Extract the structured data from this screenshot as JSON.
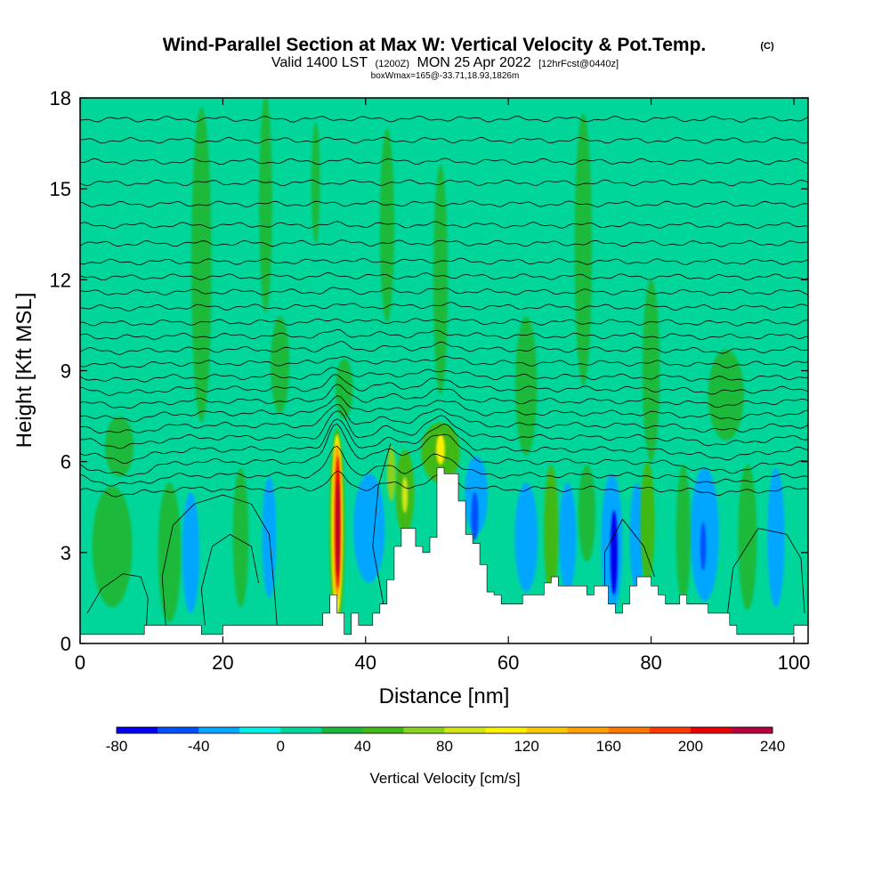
{
  "header": {
    "title": "Wind-Parallel Section at Max W: Vertical Velocity & Pot.Temp.",
    "copyright": "(C)",
    "valid_prefix": "Valid 1400 LST",
    "valid_utc": "(1200Z)",
    "valid_date": "MON 25 Apr 2022",
    "forecast": "[12hrFcst@0440z]",
    "box_line": "boxWmax=165@-33.71,18.93,1826m"
  },
  "chart_data": {
    "type": "heatmap",
    "title": "Wind-Parallel Section at Max W: Vertical Velocity & Pot.Temp.",
    "xlabel": "Distance [nm]",
    "ylabel": "Height [Kft MSL]",
    "xlim": [
      0,
      102
    ],
    "ylim": [
      0,
      18
    ],
    "x_ticks": [
      0,
      20,
      40,
      60,
      80,
      100
    ],
    "y_ticks": [
      0,
      3,
      6,
      9,
      12,
      15,
      18
    ],
    "grid": false,
    "background_w_cms": 10,
    "colorbar": {
      "title": "Vertical Velocity [cm/s]",
      "bounds": [
        -80,
        -60,
        -40,
        -20,
        0,
        20,
        40,
        60,
        80,
        100,
        120,
        140,
        160,
        180,
        200,
        220,
        240
      ],
      "tick_labels": [
        "-80",
        "-40",
        "0",
        "40",
        "80",
        "120",
        "160",
        "200",
        "240"
      ],
      "colors": [
        "#0000ee",
        "#0050ff",
        "#00a6ff",
        "#00f0e6",
        "#00d69a",
        "#1bb93a",
        "#40b919",
        "#8ad21e",
        "#d2e617",
        "#fff000",
        "#ffc800",
        "#ffa000",
        "#ff7800",
        "#ff3c00",
        "#e60000",
        "#b4003c"
      ]
    },
    "terrain": [
      [
        0,
        0.3
      ],
      [
        9,
        0.3
      ],
      [
        9,
        0.6
      ],
      [
        17,
        0.6
      ],
      [
        17,
        0.3
      ],
      [
        20,
        0.3
      ],
      [
        20,
        0.6
      ],
      [
        34,
        0.6
      ],
      [
        34,
        1
      ],
      [
        35,
        1
      ],
      [
        35,
        1.6
      ],
      [
        36,
        1.6
      ],
      [
        36,
        1
      ],
      [
        37,
        1
      ],
      [
        37,
        0.3
      ],
      [
        38,
        0.3
      ],
      [
        38,
        1
      ],
      [
        39,
        1
      ],
      [
        39,
        0.6
      ],
      [
        41,
        0.6
      ],
      [
        41,
        1
      ],
      [
        42,
        1
      ],
      [
        42,
        1.3
      ],
      [
        43,
        1.3
      ],
      [
        43,
        2.1
      ],
      [
        44,
        2.1
      ],
      [
        44,
        3.2
      ],
      [
        45,
        3.2
      ],
      [
        45,
        3.8
      ],
      [
        47,
        3.8
      ],
      [
        47,
        3.2
      ],
      [
        48,
        3.2
      ],
      [
        48,
        3
      ],
      [
        49,
        3
      ],
      [
        49,
        3.5
      ],
      [
        50,
        3.5
      ],
      [
        50,
        5.8
      ],
      [
        51,
        5.8
      ],
      [
        51,
        5.6
      ],
      [
        53,
        5.6
      ],
      [
        53,
        4.7
      ],
      [
        54,
        4.7
      ],
      [
        54,
        3.6
      ],
      [
        55,
        3.6
      ],
      [
        55,
        3.3
      ],
      [
        56,
        3.3
      ],
      [
        56,
        2.6
      ],
      [
        57,
        2.6
      ],
      [
        57,
        1.7
      ],
      [
        58,
        1.7
      ],
      [
        58,
        1.6
      ],
      [
        59,
        1.6
      ],
      [
        59,
        1.3
      ],
      [
        60,
        1.3
      ],
      [
        60,
        1.3
      ],
      [
        62,
        1.3
      ],
      [
        62,
        1.6
      ],
      [
        64,
        1.6
      ],
      [
        64,
        1.6
      ],
      [
        65,
        1.6
      ],
      [
        65,
        2
      ],
      [
        66,
        2
      ],
      [
        66,
        2.2
      ],
      [
        67,
        2.2
      ],
      [
        67,
        1.9
      ],
      [
        71,
        1.9
      ],
      [
        71,
        1.6
      ],
      [
        72,
        1.6
      ],
      [
        72,
        1.9
      ],
      [
        74,
        1.9
      ],
      [
        74,
        1.3
      ],
      [
        75,
        1.3
      ],
      [
        75,
        1
      ],
      [
        76,
        1
      ],
      [
        76,
        1.3
      ],
      [
        77,
        1.3
      ],
      [
        77,
        1.9
      ],
      [
        78,
        1.9
      ],
      [
        78,
        2.2
      ],
      [
        80,
        2.2
      ],
      [
        80,
        1.9
      ],
      [
        81,
        1.9
      ],
      [
        81,
        1.6
      ],
      [
        82,
        1.6
      ],
      [
        82,
        1.3
      ],
      [
        84,
        1.3
      ],
      [
        84,
        1.6
      ],
      [
        85,
        1.6
      ],
      [
        85,
        1.3
      ],
      [
        88,
        1.3
      ],
      [
        88,
        1
      ],
      [
        91,
        1
      ],
      [
        91,
        0.6
      ],
      [
        92,
        0.6
      ],
      [
        92,
        0.3
      ],
      [
        100,
        0.3
      ],
      [
        100,
        0.6
      ],
      [
        102,
        0.6
      ]
    ],
    "w_features": [
      {
        "x": 36,
        "y": 3.8,
        "rx": 1.1,
        "ry": 3.3,
        "w": 40
      },
      {
        "x": 36,
        "y": 3.9,
        "rx": 0.8,
        "ry": 3.0,
        "w": 100
      },
      {
        "x": 36,
        "y": 4.0,
        "rx": 0.55,
        "ry": 2.6,
        "w": 150
      },
      {
        "x": 36.1,
        "y": 4.0,
        "rx": 0.35,
        "ry": 2.2,
        "w": 210
      },
      {
        "x": 36.1,
        "y": 3.8,
        "rx": 0.22,
        "ry": 1.6,
        "w": 240
      },
      {
        "x": 50.5,
        "y": 6.3,
        "rx": 2.7,
        "ry": 1.0,
        "w": 40
      },
      {
        "x": 50.5,
        "y": 6.4,
        "rx": 0.6,
        "ry": 0.5,
        "w": 100
      },
      {
        "x": 45.5,
        "y": 5,
        "rx": 1.3,
        "ry": 1.4,
        "w": 40
      },
      {
        "x": 45.5,
        "y": 4.9,
        "rx": 0.4,
        "ry": 0.6,
        "w": 80
      },
      {
        "x": 40.5,
        "y": 3.8,
        "rx": 2.2,
        "ry": 1.8,
        "w": -30
      },
      {
        "x": 40.5,
        "y": 3.7,
        "rx": 1.2,
        "ry": 1.1,
        "w": -40
      },
      {
        "x": 55.5,
        "y": 4.9,
        "rx": 1.6,
        "ry": 1.3,
        "w": -30
      },
      {
        "x": 55.3,
        "y": 4.2,
        "rx": 0.5,
        "ry": 0.8,
        "w": -60
      },
      {
        "x": 74.5,
        "y": 3.3,
        "rx": 1.5,
        "ry": 2.3,
        "w": -40
      },
      {
        "x": 74.8,
        "y": 3.0,
        "rx": 0.5,
        "ry": 1.4,
        "w": -80
      },
      {
        "x": 15.5,
        "y": 3,
        "rx": 1.2,
        "ry": 2.0,
        "w": -40
      },
      {
        "x": 87.5,
        "y": 3.6,
        "rx": 2.0,
        "ry": 2.2,
        "w": -30
      },
      {
        "x": 87.3,
        "y": 3.2,
        "rx": 0.4,
        "ry": 0.8,
        "w": -60
      },
      {
        "x": 97.5,
        "y": 3.5,
        "rx": 1.2,
        "ry": 2.3,
        "w": -30
      },
      {
        "x": 62.5,
        "y": 3.5,
        "rx": 1.6,
        "ry": 1.8,
        "w": -30
      },
      {
        "x": 68.3,
        "y": 3.5,
        "rx": 1.2,
        "ry": 1.8,
        "w": -30
      },
      {
        "x": 26.5,
        "y": 3.5,
        "rx": 1.0,
        "ry": 2.0,
        "w": -30
      },
      {
        "x": 78,
        "y": 3.5,
        "rx": 1.0,
        "ry": 1.8,
        "w": -30
      },
      {
        "x": 22.5,
        "y": 3.5,
        "rx": 1.1,
        "ry": 2.3,
        "w": 30
      },
      {
        "x": 66,
        "y": 3.7,
        "rx": 1.0,
        "ry": 2.2,
        "w": 40
      },
      {
        "x": 79.5,
        "y": 4.0,
        "rx": 1.0,
        "ry": 2.0,
        "w": 40
      },
      {
        "x": 71,
        "y": 4.3,
        "rx": 1.2,
        "ry": 1.6,
        "w": 30
      },
      {
        "x": 84.5,
        "y": 3.6,
        "rx": 1.0,
        "ry": 2.3,
        "w": 30
      },
      {
        "x": 93.5,
        "y": 3.5,
        "rx": 1.3,
        "ry": 2.4,
        "w": 30
      },
      {
        "x": 12.5,
        "y": 3.0,
        "rx": 1.6,
        "ry": 2.3,
        "w": 30
      },
      {
        "x": 4.5,
        "y": 3.2,
        "rx": 2.8,
        "ry": 2.0,
        "w": 30
      },
      {
        "x": 43.6,
        "y": 5.6,
        "rx": 0.6,
        "ry": 0.9,
        "w": 60
      },
      {
        "x": 17,
        "y": 12.5,
        "rx": 1.4,
        "ry": 5.2,
        "w": 30
      },
      {
        "x": 26,
        "y": 14.5,
        "rx": 0.9,
        "ry": 3.6,
        "w": 30
      },
      {
        "x": 43,
        "y": 13.8,
        "rx": 1.0,
        "ry": 3.2,
        "w": 30
      },
      {
        "x": 50.5,
        "y": 12,
        "rx": 1.0,
        "ry": 3.8,
        "w": 30
      },
      {
        "x": 70.5,
        "y": 13,
        "rx": 1.2,
        "ry": 4.5,
        "w": 30
      },
      {
        "x": 80,
        "y": 9,
        "rx": 1.2,
        "ry": 3.0,
        "w": 30
      },
      {
        "x": 90.5,
        "y": 8.2,
        "rx": 2.5,
        "ry": 1.5,
        "w": 30
      },
      {
        "x": 62.5,
        "y": 8.5,
        "rx": 1.5,
        "ry": 2.3,
        "w": 30
      },
      {
        "x": 33,
        "y": 15.2,
        "rx": 0.6,
        "ry": 2.0,
        "w": 30
      },
      {
        "x": 5.5,
        "y": 6.5,
        "rx": 2.0,
        "ry": 1.0,
        "w": 30
      },
      {
        "x": 28,
        "y": 9.2,
        "rx": 1.3,
        "ry": 1.6,
        "w": 30
      },
      {
        "x": 37,
        "y": 8.4,
        "rx": 1.2,
        "ry": 1.0,
        "w": 30
      }
    ],
    "theta_levels": [
      {
        "y0": 5.1,
        "amp": 0.5
      },
      {
        "y0": 5.55,
        "amp": 0.9
      },
      {
        "y0": 6.0,
        "amp": 1.3
      },
      {
        "y0": 6.4,
        "amp": 1.05
      },
      {
        "y0": 6.8,
        "amp": 0.85
      },
      {
        "y0": 7.2,
        "amp": 0.7
      },
      {
        "y0": 7.6,
        "amp": 0.6
      },
      {
        "y0": 8.0,
        "amp": 0.5
      },
      {
        "y0": 8.4,
        "amp": 0.4
      },
      {
        "y0": 8.8,
        "amp": 0.32
      },
      {
        "y0": 9.25,
        "amp": 0.25
      },
      {
        "y0": 9.7,
        "amp": 0.2
      },
      {
        "y0": 10.15,
        "amp": 0.15
      },
      {
        "y0": 10.6,
        "amp": 0.12
      },
      {
        "y0": 11.1,
        "amp": 0.1
      },
      {
        "y0": 11.6,
        "amp": 0.08
      },
      {
        "y0": 12.1,
        "amp": 0.06
      },
      {
        "y0": 12.6,
        "amp": 0.05
      },
      {
        "y0": 13.2,
        "amp": 0.04
      },
      {
        "y0": 13.8,
        "amp": 0.03
      },
      {
        "y0": 14.5,
        "amp": 0.03
      },
      {
        "y0": 15.2,
        "amp": 0.02
      },
      {
        "y0": 15.9,
        "amp": 0.02
      },
      {
        "y0": 16.6,
        "amp": 0.02
      },
      {
        "y0": 17.3,
        "amp": 0.02
      }
    ],
    "theta_lowlevel_contours": [
      [
        [
          1,
          1
        ],
        [
          3,
          1.8
        ],
        [
          6,
          2.3
        ],
        [
          8.5,
          2.2
        ],
        [
          9.5,
          1.5
        ],
        [
          9.3,
          0.6
        ]
      ],
      [
        [
          12,
          0.6
        ],
        [
          11.5,
          2.2
        ],
        [
          13,
          3.9
        ],
        [
          16,
          4.6
        ],
        [
          20,
          4.9
        ],
        [
          24,
          4.6
        ],
        [
          26.5,
          3.6
        ],
        [
          27.2,
          1.8
        ],
        [
          27.6,
          0.6
        ]
      ],
      [
        [
          17.5,
          0.6
        ],
        [
          17,
          1.8
        ],
        [
          18.5,
          3.2
        ],
        [
          21,
          3.6
        ],
        [
          24,
          3.2
        ],
        [
          25,
          2
        ]
      ],
      [
        [
          42.5,
          1.3
        ],
        [
          41,
          3.2
        ],
        [
          41.8,
          5.2
        ],
        [
          43.5,
          6.6
        ]
      ],
      [
        [
          73.5,
          1.3
        ],
        [
          73.5,
          3
        ],
        [
          76,
          4.1
        ],
        [
          79,
          3.2
        ],
        [
          80.5,
          2.2
        ]
      ],
      [
        [
          90.5,
          0.6
        ],
        [
          91.5,
          2.5
        ],
        [
          95,
          3.8
        ],
        [
          99,
          3.6
        ],
        [
          101,
          2.8
        ],
        [
          101.5,
          1
        ]
      ]
    ]
  }
}
